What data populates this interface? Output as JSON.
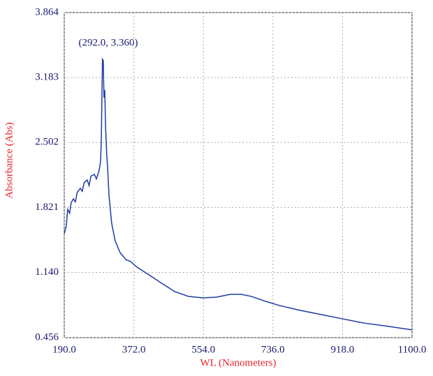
{
  "chart_data": {
    "type": "line",
    "xlabel": "WL (Nanometers)",
    "ylabel": "Absorbance (Abs)",
    "annotation": "(292.0, 3.360)",
    "color": "#1e3aa8",
    "x": [
      190,
      195,
      199,
      204,
      208,
      214,
      219,
      224,
      232,
      237,
      242,
      250,
      255,
      260,
      269,
      274,
      281,
      285,
      287,
      289,
      290,
      292,
      294,
      296,
      298,
      301,
      304,
      307,
      314,
      323,
      336,
      351,
      365,
      378,
      406,
      442,
      479,
      515,
      552,
      588,
      625,
      652,
      680,
      717,
      753,
      808,
      863,
      917,
      972,
      1027,
      1100
    ],
    "values": [
      1.546,
      1.62,
      1.8,
      1.76,
      1.87,
      1.911,
      1.88,
      1.98,
      2.021,
      1.99,
      2.08,
      2.109,
      2.05,
      2.15,
      2.167,
      2.12,
      2.204,
      2.3,
      2.533,
      3.1,
      3.374,
      3.36,
      2.972,
      3.05,
      2.679,
      2.387,
      2.2,
      1.948,
      1.656,
      1.473,
      1.348,
      1.275,
      1.25,
      1.202,
      1.129,
      1.034,
      0.939,
      0.888,
      0.873,
      0.88,
      0.91,
      0.91,
      0.888,
      0.836,
      0.793,
      0.741,
      0.697,
      0.654,
      0.61,
      0.58,
      0.537
    ],
    "xlim": [
      190,
      1100
    ],
    "xticks": [
      {
        "value": 190,
        "label": "190.0"
      },
      {
        "value": 372,
        "label": "372.0"
      },
      {
        "value": 554,
        "label": "554.0"
      },
      {
        "value": 736,
        "label": "736.0"
      },
      {
        "value": 918,
        "label": "918.0"
      },
      {
        "value": 1100,
        "label": "1100.0"
      }
    ],
    "ylim": [
      0.456,
      3.864
    ],
    "yticks": [
      0.456,
      {
        "value": 1.14,
        "label": "1.140"
      },
      1.821,
      2.502,
      3.183,
      3.864
    ],
    "grid": true
  }
}
